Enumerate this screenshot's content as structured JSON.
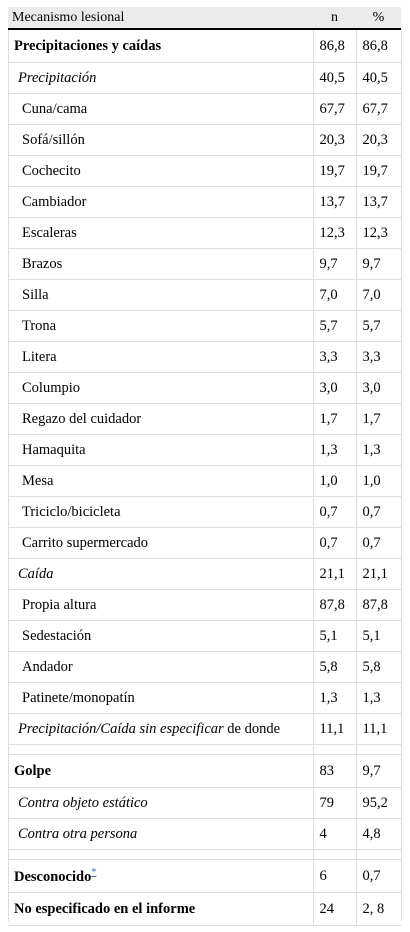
{
  "header": {
    "col1": "Mecanismo lesional",
    "col2": "n",
    "col3": "%"
  },
  "precip_total": {
    "label": "Precipitaciones y caídas",
    "n": "86,8",
    "pct": "86,8"
  },
  "precipitacion": {
    "label": "Precipitación",
    "n": "40,5",
    "pct": "40,5"
  },
  "precip_rows": [
    {
      "label": "Cuna/cama",
      "n": "67,7",
      "pct": "67,7"
    },
    {
      "label": "Sofá/sillón",
      "n": "20,3",
      "pct": "20,3"
    },
    {
      "label": "Cochecito",
      "n": "19,7",
      "pct": "19,7"
    },
    {
      "label": "Cambiador",
      "n": "13,7",
      "pct": "13,7"
    },
    {
      "label": "Escaleras",
      "n": "12,3",
      "pct": "12,3"
    },
    {
      "label": "Brazos",
      "n": "9,7",
      "pct": "9,7"
    },
    {
      "label": "Silla",
      "n": "7,0",
      "pct": "7,0"
    },
    {
      "label": "Trona",
      "n": "5,7",
      "pct": "5,7"
    },
    {
      "label": "Litera",
      "n": "3,3",
      "pct": "3,3"
    },
    {
      "label": "Columpio",
      "n": "3,0",
      "pct": "3,0"
    },
    {
      "label": "Regazo del cuidador",
      "n": "1,7",
      "pct": "1,7"
    },
    {
      "label": "Hamaquita",
      "n": "1,3",
      "pct": "1,3"
    },
    {
      "label": "Mesa",
      "n": "1,0",
      "pct": "1,0"
    },
    {
      "label": "Triciclo/bicicleta",
      "n": "0,7",
      "pct": "0,7"
    },
    {
      "label": "Carrito supermercado",
      "n": "0,7",
      "pct": "0,7"
    }
  ],
  "caida": {
    "label": "Caída",
    "n": "21,1",
    "pct": "21,1"
  },
  "caida_rows": [
    {
      "label": "Propia altura",
      "n": "87,8",
      "pct": "87,8"
    },
    {
      "label": "Sedestación",
      "n": "5,1",
      "pct": "5,1"
    },
    {
      "label": "Andador",
      "n": "5,8",
      "pct": "5,8"
    },
    {
      "label": "Patinete/monopatín",
      "n": "1,3",
      "pct": "1,3"
    }
  ],
  "sin_especificar": {
    "label_italic": "Precipitación/Caída sin especificar",
    "label_rest": " de donde",
    "n": "11,1",
    "pct": "11,1"
  },
  "golpe": {
    "label": "Golpe",
    "n": "83",
    "pct": "9,7"
  },
  "golpe_rows": [
    {
      "label": "Contra objeto estático",
      "n": "79",
      "pct": "95,2"
    },
    {
      "label": "Contra otra persona",
      "n": "4",
      "pct": "4,8"
    }
  ],
  "desconocido": {
    "label": "Desconocido",
    "footnote": "*",
    "n": "6",
    "pct": "0,7"
  },
  "no_especificado": {
    "label": "No especificado en el informe",
    "n": "24",
    "pct": "2, 8"
  }
}
